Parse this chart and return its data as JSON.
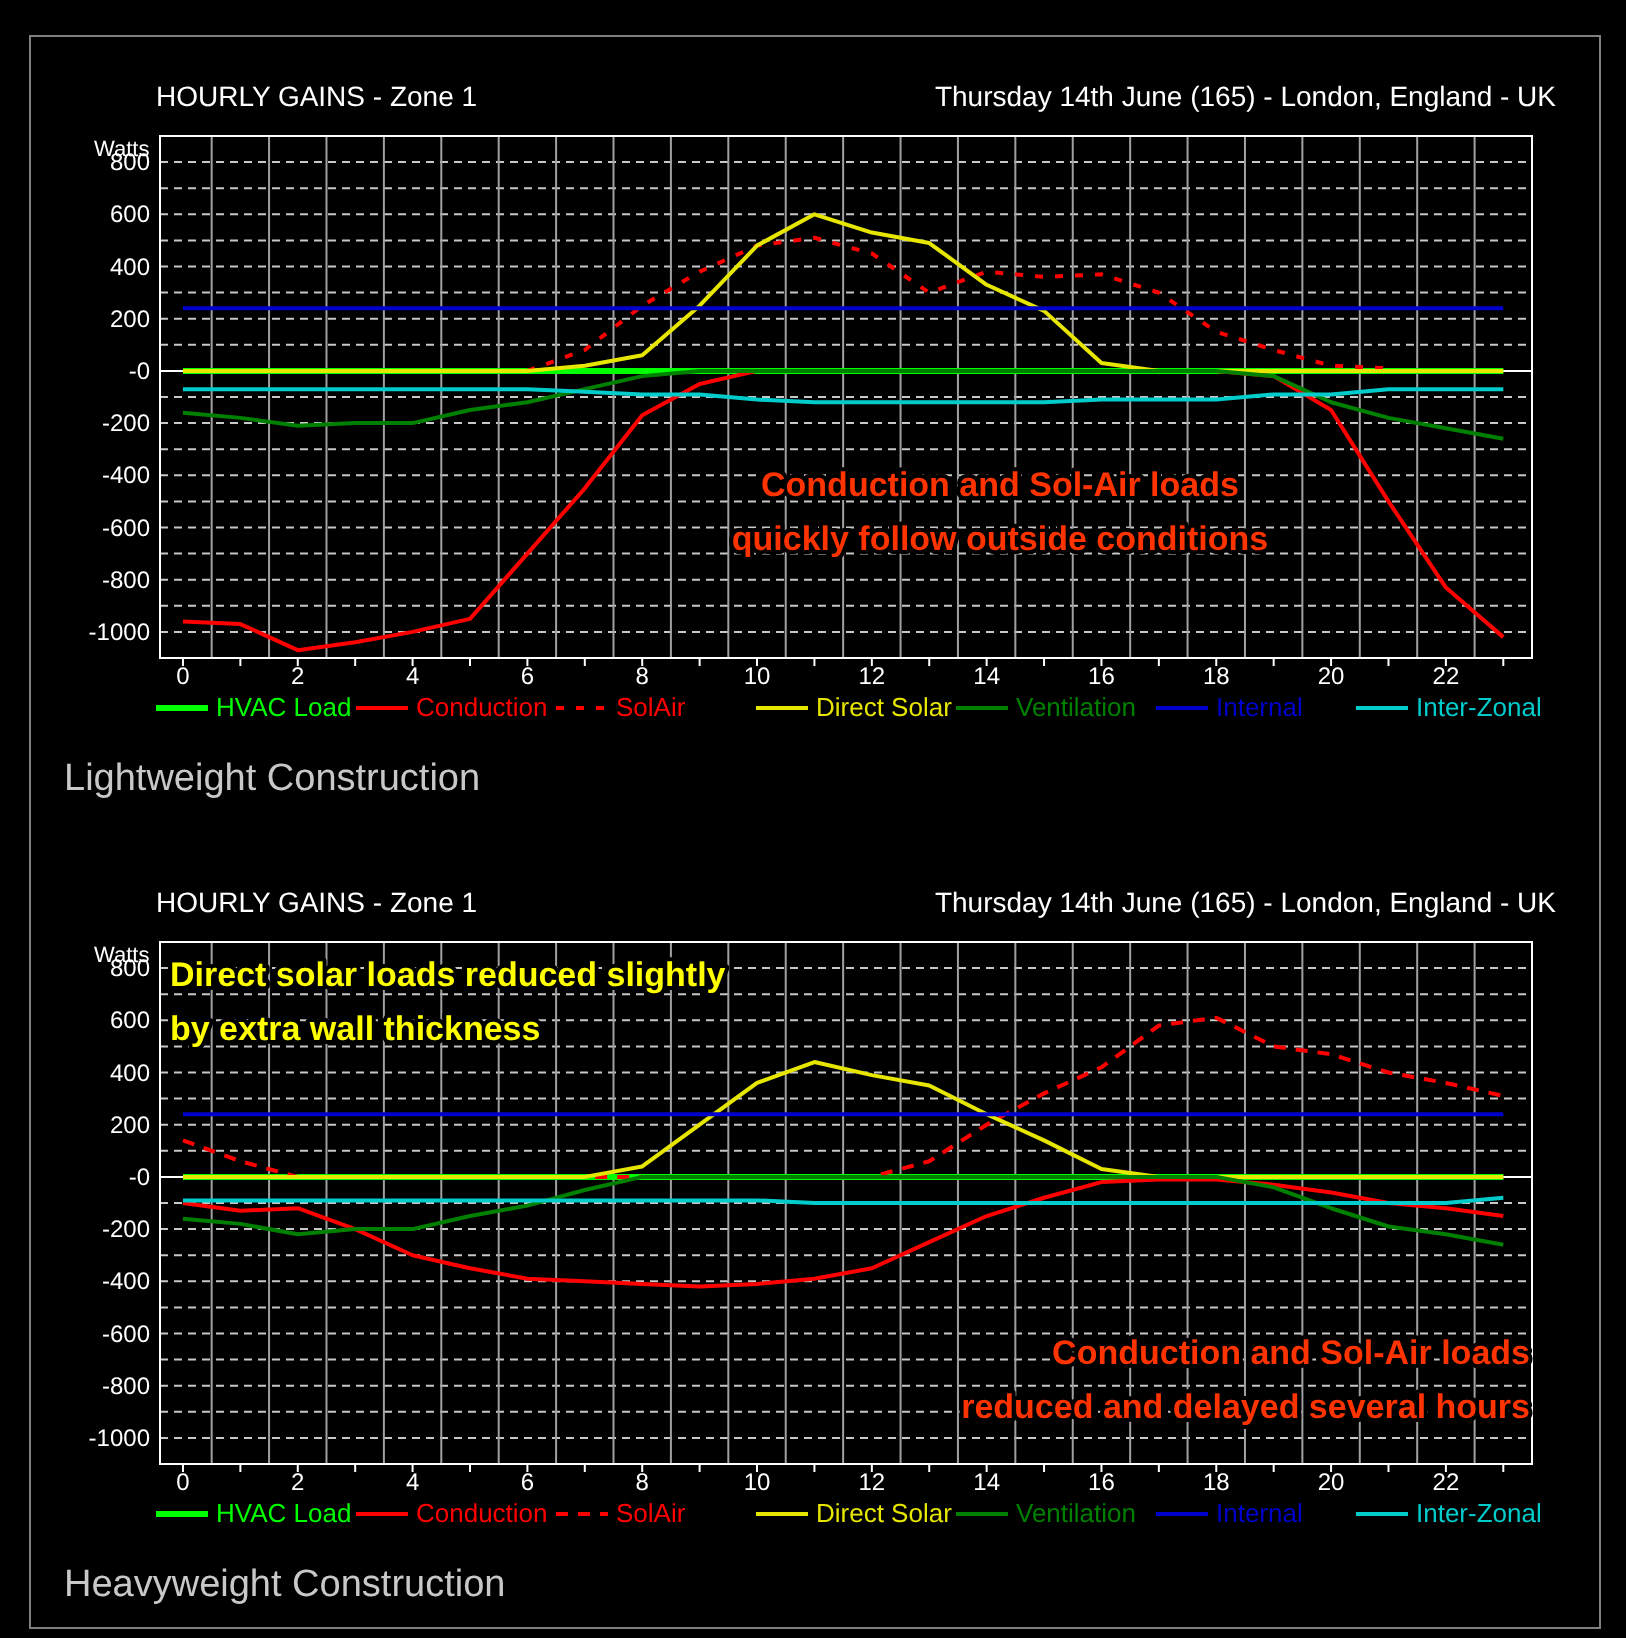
{
  "chart_data": [
    {
      "type": "line",
      "title": "HOURLY GAINS - Zone 1",
      "subtitle": "Thursday 14th June (165) - London, England - UK",
      "ylabel": "Watts",
      "x": [
        0,
        1,
        2,
        3,
        4,
        5,
        6,
        7,
        8,
        9,
        10,
        11,
        12,
        13,
        14,
        15,
        16,
        17,
        18,
        19,
        20,
        21,
        22,
        23
      ],
      "xlim": [
        -0.4,
        23.5
      ],
      "xticks": [
        0,
        2,
        4,
        6,
        8,
        10,
        12,
        14,
        16,
        18,
        20,
        22
      ],
      "ylim": [
        -1100,
        900
      ],
      "yticks": [
        800,
        600,
        400,
        200,
        {
          "value": 0,
          "label": "-0"
        },
        -200,
        -400,
        -600,
        -800,
        -1000
      ],
      "grid": true,
      "legend": "bottom",
      "annotations": [
        "Conduction and Sol-Air loads\nquickly follow outside conditions",
        "Lightweight Construction"
      ],
      "series": [
        {
          "name": "HVAC Load",
          "color": "#00ff00",
          "line_style": "solid",
          "values": [
            0,
            0,
            0,
            0,
            0,
            0,
            0,
            0,
            0,
            0,
            0,
            0,
            0,
            0,
            0,
            0,
            0,
            0,
            0,
            0,
            0,
            0,
            0,
            0
          ]
        },
        {
          "name": "Conduction",
          "color": "#ff0000",
          "line_style": "solid",
          "values": [
            -960,
            -970,
            -1070,
            -1040,
            -1000,
            -950,
            -700,
            -450,
            -170,
            -50,
            0,
            0,
            0,
            0,
            0,
            0,
            0,
            0,
            0,
            -20,
            -150,
            -500,
            -830,
            -1020
          ]
        },
        {
          "name": "SolAir",
          "color": "#ff0000",
          "line_style": "dotted",
          "values": [
            null,
            null,
            null,
            null,
            null,
            null,
            0,
            80,
            250,
            380,
            480,
            510,
            450,
            300,
            380,
            360,
            370,
            300,
            150,
            80,
            20,
            10,
            null,
            null
          ]
        },
        {
          "name": "Direct Solar",
          "color": "#e6e600",
          "line_style": "solid",
          "values": [
            0,
            0,
            0,
            0,
            0,
            0,
            0,
            20,
            60,
            250,
            480,
            600,
            530,
            490,
            330,
            230,
            30,
            0,
            0,
            0,
            0,
            0,
            0,
            0
          ]
        },
        {
          "name": "Ventilation",
          "color": "#008000",
          "line_style": "solid",
          "values": [
            -160,
            -180,
            -210,
            -200,
            -200,
            -150,
            -120,
            -70,
            -20,
            0,
            0,
            0,
            0,
            0,
            0,
            0,
            0,
            0,
            0,
            -20,
            -120,
            -180,
            -220,
            -260
          ]
        },
        {
          "name": "Internal",
          "color": "#0000cc",
          "line_style": "solid",
          "values": [
            240,
            240,
            240,
            240,
            240,
            240,
            240,
            240,
            240,
            240,
            240,
            240,
            240,
            240,
            240,
            240,
            240,
            240,
            240,
            240,
            240,
            240,
            240,
            240
          ]
        },
        {
          "name": "Inter-Zonal",
          "color": "#00cccc",
          "line_style": "solid",
          "values": [
            -70,
            -70,
            -70,
            -70,
            -70,
            -70,
            -70,
            -80,
            -90,
            -90,
            -110,
            -120,
            -120,
            -120,
            -120,
            -120,
            -110,
            -110,
            -110,
            -90,
            -90,
            -70,
            -70,
            -70
          ]
        }
      ]
    },
    {
      "type": "line",
      "title": "HOURLY GAINS - Zone 1",
      "subtitle": "Thursday 14th June (165) - London, England - UK",
      "ylabel": "Watts",
      "x": [
        0,
        1,
        2,
        3,
        4,
        5,
        6,
        7,
        8,
        9,
        10,
        11,
        12,
        13,
        14,
        15,
        16,
        17,
        18,
        19,
        20,
        21,
        22,
        23
      ],
      "xlim": [
        -0.4,
        23.5
      ],
      "xticks": [
        0,
        2,
        4,
        6,
        8,
        10,
        12,
        14,
        16,
        18,
        20,
        22
      ],
      "ylim": [
        -1100,
        900
      ],
      "yticks": [
        800,
        600,
        400,
        200,
        {
          "value": 0,
          "label": "-0"
        },
        -200,
        -400,
        -600,
        -800,
        -1000
      ],
      "grid": true,
      "legend": "bottom",
      "annotations": [
        "Direct solar loads reduced slightly\nby extra wall thickness",
        "Conduction and Sol-Air loads\nreduced and delayed several hours",
        "Heavyweight Construction"
      ],
      "series": [
        {
          "name": "HVAC Load",
          "color": "#00ff00",
          "line_style": "solid",
          "values": [
            0,
            0,
            0,
            0,
            0,
            0,
            0,
            0,
            0,
            0,
            0,
            0,
            0,
            0,
            0,
            0,
            0,
            0,
            0,
            0,
            0,
            0,
            0,
            0
          ]
        },
        {
          "name": "Conduction",
          "color": "#ff0000",
          "line_style": "solid",
          "values": [
            -100,
            -130,
            -120,
            -200,
            -300,
            -350,
            -390,
            -400,
            -410,
            -420,
            -410,
            -390,
            -350,
            -250,
            -150,
            -80,
            -20,
            -10,
            -10,
            -30,
            -60,
            -100,
            -120,
            -150
          ]
        },
        {
          "name": "SolAir",
          "color": "#ff0000",
          "line_style": "dashed",
          "values": [
            140,
            60,
            0,
            0,
            0,
            0,
            0,
            0,
            0,
            0,
            0,
            0,
            0,
            60,
            200,
            320,
            420,
            580,
            610,
            500,
            470,
            400,
            360,
            310
          ]
        },
        {
          "name": "Direct Solar",
          "color": "#e6e600",
          "line_style": "solid",
          "values": [
            0,
            0,
            0,
            0,
            0,
            0,
            0,
            0,
            40,
            200,
            360,
            440,
            390,
            350,
            240,
            140,
            30,
            0,
            0,
            0,
            0,
            0,
            0,
            0
          ]
        },
        {
          "name": "Ventilation",
          "color": "#008000",
          "line_style": "solid",
          "values": [
            -160,
            -180,
            -220,
            -200,
            -200,
            -150,
            -110,
            -50,
            0,
            0,
            0,
            0,
            0,
            0,
            0,
            0,
            0,
            0,
            0,
            -40,
            -120,
            -190,
            -220,
            -260
          ]
        },
        {
          "name": "Internal",
          "color": "#0000cc",
          "line_style": "solid",
          "values": [
            240,
            240,
            240,
            240,
            240,
            240,
            240,
            240,
            240,
            240,
            240,
            240,
            240,
            240,
            240,
            240,
            240,
            240,
            240,
            240,
            240,
            240,
            240,
            240
          ]
        },
        {
          "name": "Inter-Zonal",
          "color": "#00cccc",
          "line_style": "solid",
          "values": [
            -90,
            -90,
            -90,
            -90,
            -90,
            -90,
            -90,
            -90,
            -90,
            -90,
            -90,
            -100,
            -100,
            -100,
            -100,
            -100,
            -100,
            -100,
            -100,
            -100,
            -100,
            -100,
            -100,
            -80
          ]
        }
      ]
    }
  ]
}
